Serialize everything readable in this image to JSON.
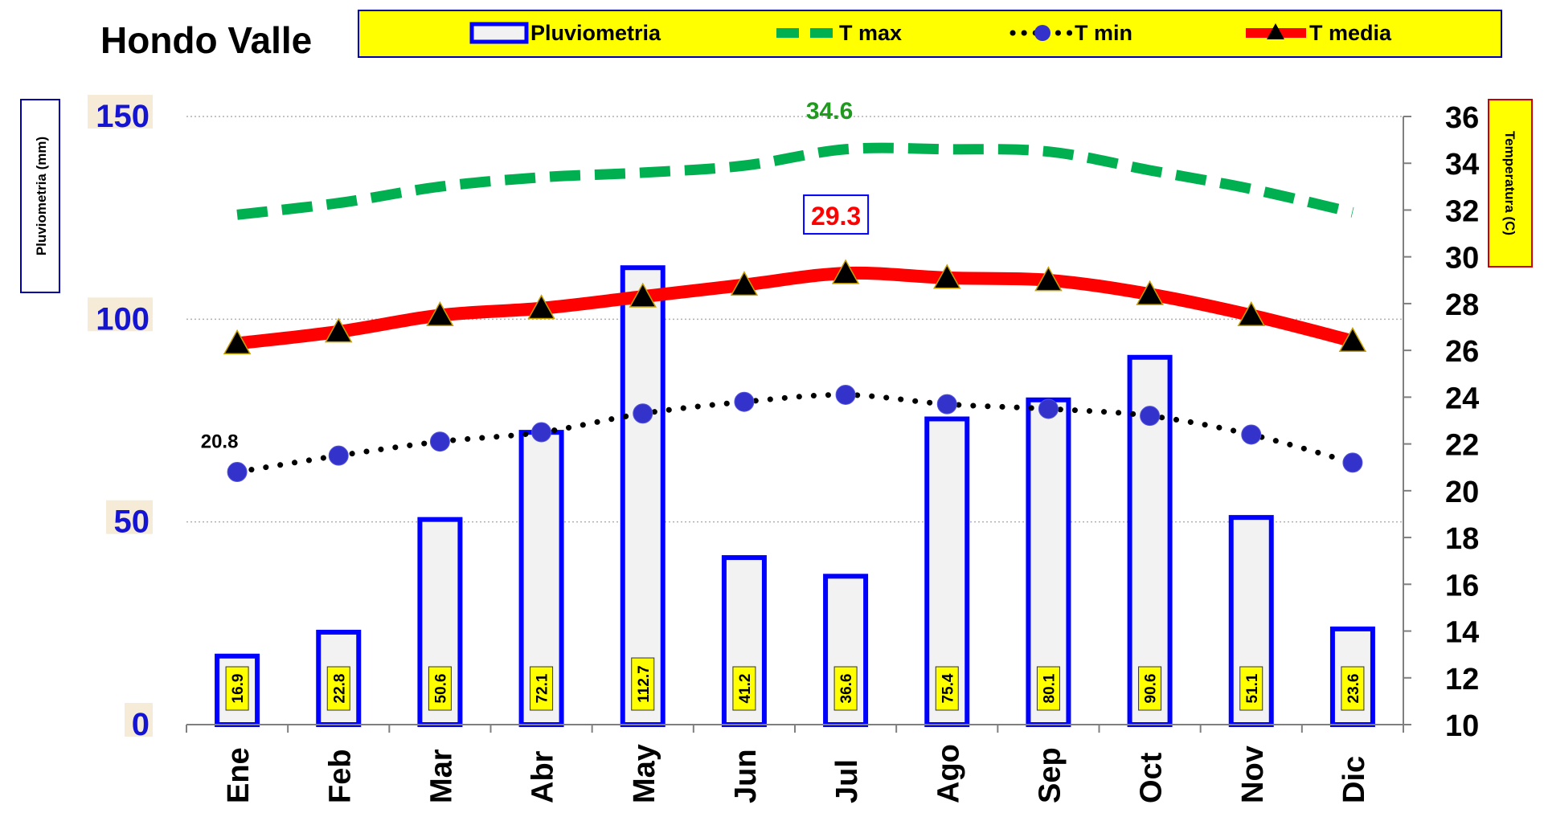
{
  "chart_data": {
    "type": "bar",
    "title": "Hondo Valle",
    "categories": [
      "Ene",
      "Feb",
      "Mar",
      "Abr",
      "May",
      "Jun",
      "Jul",
      "Ago",
      "Sep",
      "Oct",
      "Nov",
      "Dic"
    ],
    "y_left": {
      "label": "Pluviometria (mm)",
      "lim": [
        0,
        150
      ],
      "ticks": [
        0,
        50,
        100,
        150
      ]
    },
    "y_right": {
      "label": "Temperatura (C)",
      "lim": [
        10,
        36
      ],
      "ticks": [
        10,
        12,
        14,
        16,
        18,
        20,
        22,
        24,
        26,
        28,
        30,
        32,
        34,
        36
      ]
    },
    "grid": true,
    "legend": "top",
    "series": [
      {
        "name": "Pluviometria",
        "type": "bar",
        "axis": "left",
        "color": "#0000ff",
        "values": [
          16.9,
          22.8,
          50.6,
          72.1,
          112.7,
          41.2,
          36.6,
          75.4,
          80.1,
          90.6,
          51.1,
          23.6
        ],
        "labels": [
          "16.9",
          "22.8",
          "50.6",
          "72.1",
          "112.7",
          "41.2",
          "36.6",
          "75.4",
          "80.1",
          "90.6",
          "51.1",
          "23.6"
        ]
      },
      {
        "name": "T max",
        "type": "line",
        "style": "dashed",
        "axis": "right",
        "color": "#00b050",
        "values": [
          31.8,
          32.3,
          33.0,
          33.4,
          33.6,
          33.9,
          34.6,
          34.6,
          34.5,
          33.7,
          32.9,
          31.9
        ]
      },
      {
        "name": "T min",
        "type": "line",
        "style": "dotted",
        "axis": "right",
        "color": "#000000",
        "marker_color": "#3333cc",
        "values": [
          20.8,
          21.5,
          22.1,
          22.5,
          23.3,
          23.8,
          24.1,
          23.7,
          23.5,
          23.2,
          22.4,
          21.2
        ]
      },
      {
        "name": "T media",
        "type": "line",
        "style": "solid",
        "axis": "right",
        "color": "#ff0000",
        "values": [
          26.3,
          26.8,
          27.5,
          27.8,
          28.3,
          28.8,
          29.3,
          29.1,
          29.0,
          28.4,
          27.5,
          26.4
        ]
      }
    ],
    "annotations": {
      "tmax_peak": "34.6",
      "tmedia_peak": "29.3",
      "tmin_first": "20.8"
    }
  }
}
